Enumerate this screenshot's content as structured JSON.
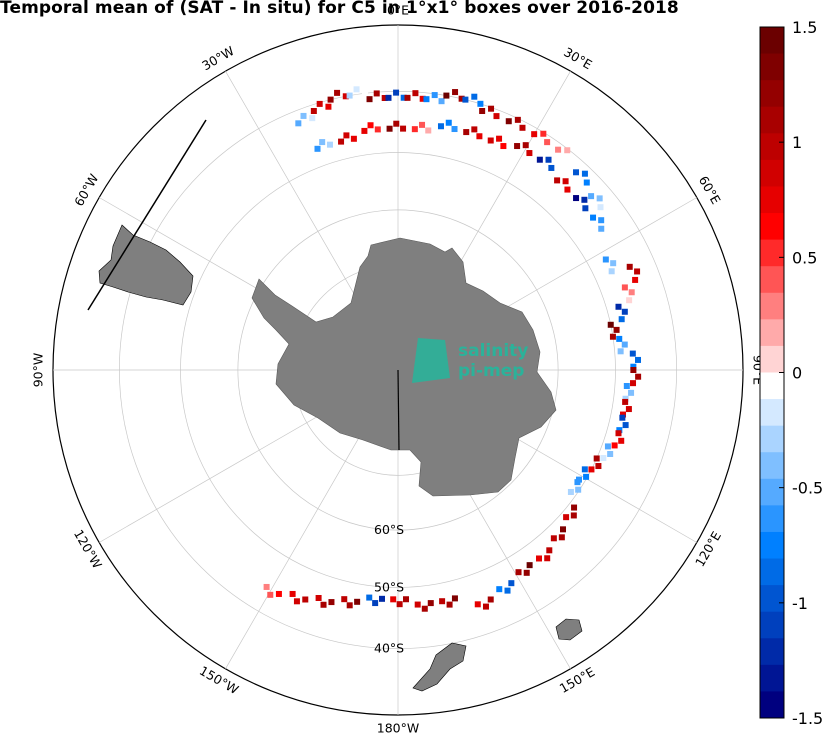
{
  "title": "Temporal mean of (SAT - In situ) for C5 in 1°x1° boxes over 2016-2018",
  "map": {
    "projection": "south-polar stereographic",
    "longitude_labels": [
      {
        "text": "0°E",
        "lon": 0
      },
      {
        "text": "30°E",
        "lon": 30
      },
      {
        "text": "60°E",
        "lon": 60
      },
      {
        "text": "90°E",
        "lon": 90
      },
      {
        "text": "120°E",
        "lon": 120
      },
      {
        "text": "150°E",
        "lon": 150
      },
      {
        "text": "180°W",
        "lon": 180
      },
      {
        "text": "150°W",
        "lon": -150
      },
      {
        "text": "120°W",
        "lon": -120
      },
      {
        "text": "90°W",
        "lon": -90
      },
      {
        "text": "60°W",
        "lon": -60
      },
      {
        "text": "30°W",
        "lon": -30
      }
    ],
    "latitude_labels": [
      {
        "text": "60°S",
        "lat": -60
      },
      {
        "text": "50°S",
        "lat": -50
      },
      {
        "text": "40°S",
        "lat": -40
      }
    ],
    "land_color": "#7f7f7f",
    "grid_color": "#c8c8c8",
    "outer_latitude": -30
  },
  "logo": {
    "line1": "salinity",
    "line2": "pi-mep",
    "color": "#2bb29a"
  },
  "colorbar": {
    "min": -1.5,
    "max": 1.5,
    "tick_labels": [
      "1.5",
      "1",
      "0.5",
      "0",
      "-0.5",
      "-1",
      "-1.5"
    ],
    "tick_values": [
      1.5,
      1,
      0.5,
      0,
      -0.5,
      -1,
      -1.5
    ],
    "colors_top_to_bottom": [
      "#6b0000",
      "#7f0000",
      "#940000",
      "#a80000",
      "#bd0000",
      "#d10000",
      "#e60000",
      "#ff0000",
      "#ff2a2a",
      "#ff5555",
      "#ff7f7f",
      "#ffaaaa",
      "#ffd4d4",
      "#ffffff",
      "#d4e9ff",
      "#aad4ff",
      "#7fbfff",
      "#55aaff",
      "#2a95ff",
      "#0080ff",
      "#006be6",
      "#0055d1",
      "#0040bd",
      "#002aa8",
      "#001594",
      "#00007f"
    ]
  },
  "chart_data": {
    "type": "heatmap",
    "title": "Temporal mean of (SAT - In situ) for C5 in 1°x1° boxes over 2016-2018",
    "value_range": [
      -1.5,
      1.5
    ],
    "cells_note_lon_lat_value": [
      [
        -22,
        -42,
        -0.5
      ],
      [
        -18,
        -41,
        1.0
      ],
      [
        -14,
        -40,
        1.2
      ],
      [
        -10,
        -40,
        -0.3
      ],
      [
        -6,
        -41,
        1.3
      ],
      [
        -2,
        -41,
        -1.2
      ],
      [
        2,
        -41,
        1.1
      ],
      [
        6,
        -41,
        -0.8
      ],
      [
        10,
        -40,
        1.4
      ],
      [
        14,
        -40,
        -1.0
      ],
      [
        18,
        -41,
        1.2
      ],
      [
        -20,
        -47,
        -0.6
      ],
      [
        -14,
        -47,
        1.0
      ],
      [
        -8,
        -46,
        0.8
      ],
      [
        -2,
        -46,
        1.3
      ],
      [
        4,
        -46,
        0.5
      ],
      [
        10,
        -45,
        -0.9
      ],
      [
        16,
        -45,
        1.1
      ],
      [
        22,
        -45,
        0.9
      ],
      [
        28,
        -44,
        1.2
      ],
      [
        34,
        -44,
        -1.3
      ],
      [
        40,
        -45,
        1.0
      ],
      [
        46,
        -45,
        -1.4
      ],
      [
        52,
        -45,
        -0.8
      ],
      [
        24,
        -41,
        1.3
      ],
      [
        30,
        -41,
        0.7
      ],
      [
        36,
        -41,
        0.3
      ],
      [
        42,
        -42,
        -1.0
      ],
      [
        48,
        -43,
        -0.5
      ],
      [
        62,
        -47,
        -0.6
      ],
      [
        66,
        -44,
        1.1
      ],
      [
        70,
        -46,
        0.4
      ],
      [
        74,
        -48,
        -1.2
      ],
      [
        78,
        -50,
        1.4
      ],
      [
        82,
        -49,
        -0.7
      ],
      [
        86,
        -47,
        -1.0
      ],
      [
        90,
        -47,
        1.2
      ],
      [
        94,
        -48,
        -0.6
      ],
      [
        98,
        -48,
        1.0
      ],
      [
        102,
        -48,
        -1.1
      ],
      [
        106,
        -48,
        0.9
      ],
      [
        110,
        -49,
        -0.5
      ],
      [
        114,
        -50,
        1.1
      ],
      [
        118,
        -51,
        -0.9
      ],
      [
        122,
        -51,
        -0.6
      ],
      [
        128,
        -49,
        1.2
      ],
      [
        134,
        -48,
        1.3
      ],
      [
        140,
        -47,
        1.0
      ],
      [
        146,
        -47,
        1.4
      ],
      [
        152,
        -46,
        -1.0
      ],
      [
        158,
        -45,
        1.1
      ],
      [
        166,
        -47,
        1.3
      ],
      [
        172,
        -47,
        1.2
      ],
      [
        178,
        -48,
        1.1
      ],
      [
        -176,
        -48,
        -1.2
      ],
      [
        -170,
        -47,
        1.3
      ],
      [
        -164,
        -46,
        1.2
      ],
      [
        -158,
        -45,
        1.0
      ],
      [
        -152,
        -44,
        0.6
      ]
    ]
  }
}
